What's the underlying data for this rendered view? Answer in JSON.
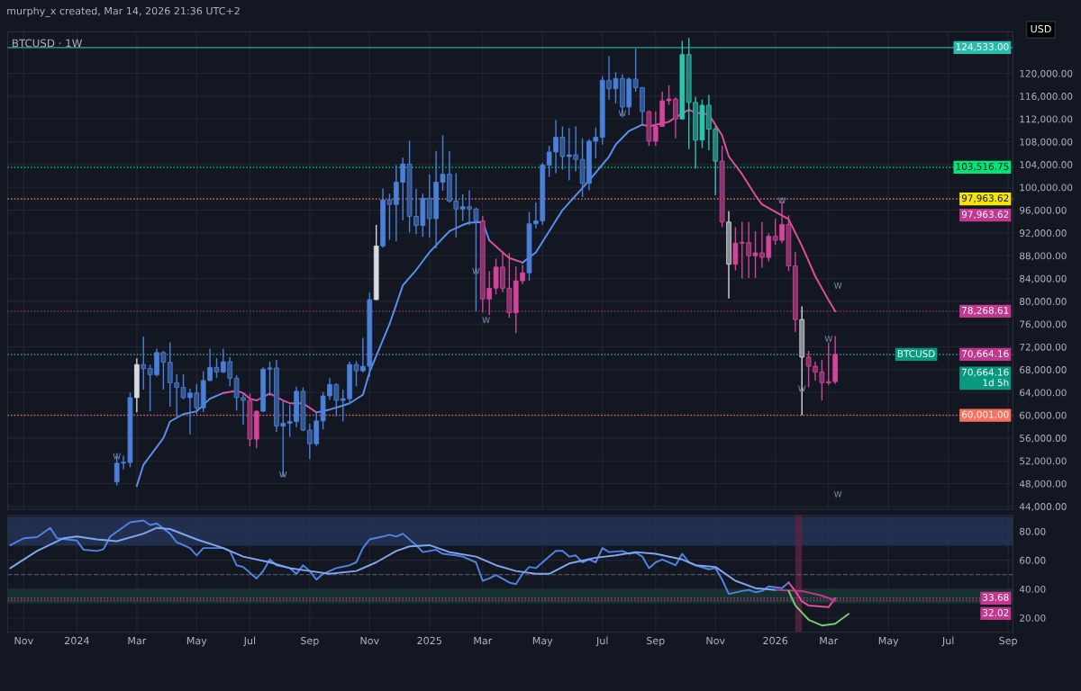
{
  "chart_data": [
    {
      "type": "candlestick",
      "title": "BTCUSD · 1W",
      "x": [
        "2024-02-12",
        "2024-02-19",
        "2024-02-26",
        "2024-03-04",
        "2024-03-11",
        "2024-03-18",
        "2024-03-25",
        "2024-04-01",
        "2024-04-08",
        "2024-04-15",
        "2024-04-22",
        "2024-04-29",
        "2024-05-06",
        "2024-05-13",
        "2024-05-20",
        "2024-05-27",
        "2024-06-03",
        "2024-06-10",
        "2024-06-17",
        "2024-06-24",
        "2024-07-01",
        "2024-07-08",
        "2024-07-15",
        "2024-07-22",
        "2024-07-29",
        "2024-08-05",
        "2024-08-12",
        "2024-08-19",
        "2024-08-26",
        "2024-09-02",
        "2024-09-09",
        "2024-09-16",
        "2024-09-23",
        "2024-09-30",
        "2024-10-07",
        "2024-10-14",
        "2024-10-21",
        "2024-10-28",
        "2024-11-04",
        "2024-11-11",
        "2024-11-18",
        "2024-11-25",
        "2024-12-02",
        "2024-12-09",
        "2024-12-16",
        "2024-12-23",
        "2024-12-30",
        "2025-01-06",
        "2025-01-13",
        "2025-01-20",
        "2025-01-27",
        "2025-02-03",
        "2025-02-10",
        "2025-02-17",
        "2025-02-24",
        "2025-03-03",
        "2025-03-10",
        "2025-03-17",
        "2025-03-24",
        "2025-03-31",
        "2025-04-07",
        "2025-04-14",
        "2025-04-21",
        "2025-04-28",
        "2025-05-05",
        "2025-05-12",
        "2025-05-19",
        "2025-05-26",
        "2025-06-02",
        "2025-06-09",
        "2025-06-16",
        "2025-06-23",
        "2025-06-30",
        "2025-07-07",
        "2025-07-14",
        "2025-07-21",
        "2025-07-28",
        "2025-08-04",
        "2025-08-11",
        "2025-08-18",
        "2025-08-25",
        "2025-09-01",
        "2025-09-08",
        "2025-09-15",
        "2025-09-22",
        "2025-09-29",
        "2025-10-06",
        "2025-10-13",
        "2025-10-20",
        "2025-10-27",
        "2025-11-03",
        "2025-11-10",
        "2025-11-17",
        "2025-11-24",
        "2025-12-01",
        "2025-12-08",
        "2025-12-15",
        "2025-12-22",
        "2025-12-29",
        "2026-01-05",
        "2026-01-12",
        "2026-01-19",
        "2026-01-26",
        "2026-02-02",
        "2026-02-09",
        "2026-02-16",
        "2026-02-23",
        "2026-03-02",
        "2026-03-09"
      ],
      "ohlc": [
        [
          48300,
          52800,
          47700,
          51600
        ],
        [
          51600,
          52900,
          50500,
          51700
        ],
        [
          51700,
          64000,
          50900,
          63100
        ],
        [
          63100,
          70000,
          60500,
          68900
        ],
        [
          68900,
          73800,
          64500,
          68200
        ],
        [
          68200,
          68900,
          60700,
          67100
        ],
        [
          67100,
          71700,
          66800,
          71000
        ],
        [
          71000,
          71300,
          64500,
          69300
        ],
        [
          69300,
          72800,
          61500,
          65700
        ],
        [
          65700,
          67200,
          59700,
          64900
        ],
        [
          64900,
          67200,
          62800,
          63100
        ],
        [
          63100,
          64700,
          56600,
          63900
        ],
        [
          63900,
          65500,
          60200,
          61300
        ],
        [
          61300,
          67700,
          60600,
          66100
        ],
        [
          66100,
          71700,
          66000,
          68400
        ],
        [
          68400,
          70000,
          66600,
          67600
        ],
        [
          67600,
          71700,
          67400,
          69400
        ],
        [
          69400,
          70200,
          65100,
          66500
        ],
        [
          66500,
          67000,
          60800,
          63100
        ],
        [
          63100,
          63800,
          58300,
          62600
        ],
        [
          62600,
          63800,
          54500,
          55800
        ],
        [
          55800,
          60900,
          54200,
          60700
        ],
        [
          60700,
          68400,
          60600,
          68100
        ],
        [
          68100,
          69400,
          63400,
          68300
        ],
        [
          68300,
          69700,
          57100,
          58100
        ],
        [
          58100,
          62700,
          49200,
          58600
        ],
        [
          58600,
          61800,
          56200,
          58900
        ],
        [
          58900,
          65000,
          57900,
          64200
        ],
        [
          64200,
          64900,
          57200,
          57400
        ],
        [
          57400,
          58500,
          52300,
          55000
        ],
        [
          55000,
          60600,
          54600,
          59000
        ],
        [
          59000,
          64100,
          57500,
          63400
        ],
        [
          63400,
          66500,
          62700,
          65400
        ],
        [
          65400,
          65600,
          59800,
          62600
        ],
        [
          62600,
          64500,
          58900,
          62900
        ],
        [
          62900,
          69400,
          62000,
          68900
        ],
        [
          68900,
          69500,
          65100,
          67800
        ],
        [
          67800,
          73600,
          67500,
          68600
        ],
        [
          68600,
          81500,
          66800,
          80300
        ],
        [
          80300,
          93400,
          80200,
          89700
        ],
        [
          89700,
          99800,
          89400,
          97800
        ],
        [
          97800,
          98900,
          90800,
          97000
        ],
        [
          97000,
          103900,
          90500,
          100900
        ],
        [
          100900,
          105200,
          94200,
          104100
        ],
        [
          104100,
          108200,
          92100,
          94900
        ],
        [
          94900,
          99700,
          91800,
          93300
        ],
        [
          93300,
          98900,
          91300,
          98100
        ],
        [
          98100,
          102300,
          91200,
          94500
        ],
        [
          94500,
          106400,
          89300,
          100900
        ],
        [
          100900,
          109100,
          99400,
          102300
        ],
        [
          102300,
          106400,
          97300,
          97600
        ],
        [
          97600,
          102500,
          91200,
          96200
        ],
        [
          96200,
          98800,
          94100,
          96600
        ],
        [
          96600,
          99500,
          93400,
          96200
        ],
        [
          96200,
          96500,
          78200,
          94100
        ],
        [
          94100,
          95000,
          78000,
          80400
        ],
        [
          80400,
          85300,
          77600,
          82300
        ],
        [
          82300,
          87500,
          81200,
          86000
        ],
        [
          86000,
          88800,
          81600,
          82300
        ],
        [
          82300,
          88500,
          77100,
          78000
        ],
        [
          78000,
          86100,
          74400,
          83600
        ],
        [
          83600,
          86400,
          83000,
          85000
        ],
        [
          85000,
          95700,
          83600,
          93600
        ],
        [
          93600,
          97400,
          92800,
          94100
        ],
        [
          94100,
          104300,
          93400,
          103900
        ],
        [
          103900,
          107300,
          101800,
          106200
        ],
        [
          106200,
          111800,
          102500,
          108800
        ],
        [
          108800,
          110700,
          103100,
          105400
        ],
        [
          105400,
          110400,
          101200,
          105700
        ],
        [
          105700,
          110700,
          102800,
          104900
        ],
        [
          104900,
          108600,
          98300,
          100700
        ],
        [
          100700,
          108500,
          99500,
          108100
        ],
        [
          108100,
          110500,
          105100,
          108800
        ],
        [
          108800,
          119500,
          107500,
          118800
        ],
        [
          118800,
          123000,
          115400,
          117300
        ],
        [
          117300,
          120200,
          114700,
          119100
        ],
        [
          119100,
          119800,
          112300,
          114100
        ],
        [
          114100,
          119300,
          112700,
          119000
        ],
        [
          119000,
          124400,
          116800,
          117500
        ],
        [
          117500,
          117600,
          110800,
          113300
        ],
        [
          113300,
          113500,
          107300,
          108100
        ],
        [
          108100,
          113300,
          107300,
          110700
        ],
        [
          110700,
          116800,
          110600,
          115200
        ],
        [
          115200,
          117900,
          114500,
          115500
        ],
        [
          115500,
          115800,
          108600,
          112000
        ],
        [
          112000,
          125700,
          111900,
          123300
        ],
        [
          123300,
          126200,
          106700,
          114900
        ],
        [
          114900,
          115900,
          103300,
          108300
        ],
        [
          108300,
          115400,
          106900,
          114400
        ],
        [
          114400,
          116200,
          106500,
          110200
        ],
        [
          110200,
          110700,
          98600,
          104600
        ],
        [
          104600,
          107300,
          93000,
          93900
        ],
        [
          93900,
          95800,
          80500,
          86500
        ],
        [
          86500,
          93000,
          85400,
          90200
        ],
        [
          90200,
          93900,
          84000,
          90300
        ],
        [
          90300,
          93900,
          84100,
          88000
        ],
        [
          88000,
          92300,
          84100,
          88500
        ],
        [
          88500,
          93900,
          85900,
          87700
        ],
        [
          87700,
          91900,
          87000,
          91400
        ],
        [
          91400,
          94500,
          89900,
          90700
        ],
        [
          90700,
          97500,
          90200,
          93500
        ],
        [
          93500,
          95100,
          85300,
          86200
        ],
        [
          86200,
          88700,
          74600,
          76800
        ],
        [
          76800,
          79100,
          60001,
          70200
        ],
        [
          70200,
          71300,
          64900,
          68600
        ],
        [
          68600,
          69400,
          66100,
          67600
        ],
        [
          67600,
          69700,
          62600,
          65700
        ],
        [
          65700,
          72800,
          65300,
          65900
        ],
        [
          65900,
          73900,
          65500,
          70664.16
        ]
      ],
      "colors": [
        "#4a80d8",
        "#4a80d8",
        "#4a80d8",
        "#d7d9e0",
        "#4a80d8",
        "#4a80d8",
        "#4a80d8",
        "#4a80d8",
        "#4a80d8",
        "#4a80d8",
        "#4a80d8",
        "#4a80d8",
        "#4a80d8",
        "#4a80d8",
        "#4a80d8",
        "#4a80d8",
        "#4a80d8",
        "#4a80d8",
        "#4a80d8",
        "#4a80d8",
        "#d2459b",
        "#d2459b",
        "#4a80d8",
        "#4a80d8",
        "#4a80d8",
        "#4a80d8",
        "#4a80d8",
        "#4a80d8",
        "#4a80d8",
        "#4a80d8",
        "#4a80d8",
        "#4a80d8",
        "#4a80d8",
        "#4a80d8",
        "#4a80d8",
        "#4a80d8",
        "#4a80d8",
        "#4a80d8",
        "#4a80d8",
        "#d7d9e0",
        "#4a80d8",
        "#4a80d8",
        "#4a80d8",
        "#4a80d8",
        "#4a80d8",
        "#4a80d8",
        "#4a80d8",
        "#4a80d8",
        "#4a80d8",
        "#4a80d8",
        "#4a80d8",
        "#4a80d8",
        "#4a80d8",
        "#4a80d8",
        "#4a80d8",
        "#d2459b",
        "#d2459b",
        "#d2459b",
        "#d2459b",
        "#d2459b",
        "#d2459b",
        "#d2459b",
        "#4a80d8",
        "#4a80d8",
        "#4a80d8",
        "#4a80d8",
        "#4a80d8",
        "#4a80d8",
        "#4a80d8",
        "#4a80d8",
        "#4a80d8",
        "#4a80d8",
        "#4a80d8",
        "#4a80d8",
        "#4a80d8",
        "#4a80d8",
        "#4a80d8",
        "#4a80d8",
        "#4a80d8",
        "#4a80d8",
        "#d2459b",
        "#d2459b",
        "#d2459b",
        "#d2459b",
        "#d2459b",
        "#2ec4b0",
        "#2ec4b0",
        "#2ec4b0",
        "#2ec4b0",
        "#2ec4b0",
        "#2ec4b0",
        "#d2459b",
        "#d7d9e0",
        "#d2459b",
        "#d2459b",
        "#d2459b",
        "#d2459b",
        "#d2459b",
        "#d2459b",
        "#d2459b",
        "#d2459b",
        "#d2459b",
        "#d2459b",
        "#d7d9e0",
        "#d2459b",
        "#d2459b",
        "#d2459b",
        "#d2459b",
        "#d2459b"
      ],
      "series": [
        {
          "type": "line",
          "color": "#5b8ff0",
          "x": [
            "2024-03-04",
            "2024-03-11",
            "2024-04-01",
            "2024-04-08",
            "2024-04-22",
            "2024-05-06",
            "2024-05-20",
            "2024-06-03"
          ],
          "values": [
            47600,
            51300,
            56000,
            58900,
            60200,
            60700,
            62900,
            63900
          ]
        },
        {
          "type": "line",
          "color": "#e0509e",
          "x": [
            "2024-06-03",
            "2024-06-17",
            "2024-06-24",
            "2024-07-01",
            "2024-07-08",
            "2024-07-22",
            "2024-08-05",
            "2024-08-12",
            "2024-08-26",
            "2024-09-09"
          ],
          "values": [
            63900,
            64300,
            63900,
            62900,
            62600,
            63800,
            62600,
            62100,
            62100,
            60500
          ]
        },
        {
          "type": "line",
          "color": "#5b8ff0",
          "x": [
            "2024-09-09",
            "2024-09-23",
            "2024-10-07",
            "2024-10-14",
            "2024-10-28",
            "2024-11-04",
            "2024-11-25",
            "2024-12-09",
            "2024-12-23",
            "2025-01-06",
            "2025-01-27",
            "2025-02-10",
            "2025-02-17",
            "2025-03-03",
            "2025-03-10"
          ],
          "values": [
            60500,
            61000,
            61700,
            62100,
            63600,
            67600,
            76000,
            82800,
            85500,
            88600,
            92300,
            93400,
            93800,
            93900,
            90700
          ]
        },
        {
          "type": "line",
          "color": "#e0509e",
          "x": [
            "2025-03-10",
            "2025-03-24",
            "2025-03-31",
            "2025-04-14"
          ],
          "values": [
            90700,
            88600,
            87600,
            86800
          ]
        },
        {
          "type": "line",
          "color": "#5b8ff0",
          "x": [
            "2025-04-14",
            "2025-04-28",
            "2025-05-12",
            "2025-05-26",
            "2025-06-09",
            "2025-06-23",
            "2025-07-14",
            "2025-07-21",
            "2025-08-04",
            "2025-08-18"
          ],
          "values": [
            86800,
            88600,
            92300,
            96000,
            98600,
            101200,
            105400,
            107500,
            109900,
            111000
          ]
        },
        {
          "type": "line",
          "color": "#e0509e",
          "x": [
            "2025-08-18",
            "2025-08-25",
            "2025-09-15",
            "2025-09-22",
            "2025-10-06"
          ],
          "values": [
            111000,
            110700,
            111500,
            112300,
            113600
          ]
        },
        {
          "type": "line",
          "color": "#e0509e",
          "x": [
            "2025-10-06",
            "2025-10-13",
            "2025-10-27",
            "2025-11-10",
            "2025-11-17",
            "2025-12-01",
            "2025-12-15",
            "2025-12-22",
            "2026-01-05",
            "2026-01-19",
            "2026-02-02",
            "2026-02-16",
            "2026-03-02",
            "2026-03-09"
          ],
          "values": [
            113600,
            113100,
            112800,
            109100,
            105400,
            102300,
            98600,
            97000,
            95700,
            94400,
            89700,
            84400,
            80200,
            78268.61
          ]
        }
      ],
      "xlim": [
        "2023-10-20",
        "2026-09-12"
      ],
      "xticks": [
        {
          "value": "2023-11-06",
          "label": null
        },
        {
          "value": "2024-01-01",
          "label": null
        },
        {
          "value": "2024-03-04",
          "label": null
        },
        {
          "value": "2024-05-06",
          "label": null
        },
        {
          "value": "2024-07-01",
          "label": null
        },
        {
          "value": "2024-09-02",
          "label": null
        },
        {
          "value": "2024-11-04",
          "label": null
        },
        {
          "value": "2025-01-06",
          "label": null
        },
        {
          "value": "2025-03-03",
          "label": null
        },
        {
          "value": "2025-05-05",
          "label": null
        },
        {
          "value": "2025-07-07",
          "label": null
        },
        {
          "value": "2025-09-01",
          "label": null
        },
        {
          "value": "2025-11-03",
          "label": null
        },
        {
          "value": "2026-01-05",
          "label": null
        },
        {
          "value": "2026-03-02",
          "label": null
        },
        {
          "value": "2026-05-04",
          "label": null
        },
        {
          "value": "2026-07-06",
          "label": null
        },
        {
          "value": "2026-09-07",
          "label": null
        }
      ],
      "ylim": [
        43500,
        127300
      ],
      "yticks": [
        {
          "value": 44000,
          "label": "44,000.00"
        },
        {
          "value": 48000,
          "label": "48,000.00"
        },
        {
          "value": 52000,
          "label": "52,000.00"
        },
        {
          "value": 56000,
          "label": "56,000.00"
        },
        {
          "value": 60000,
          "label": "60,000.00"
        },
        {
          "value": 64000,
          "label": "64,000.00"
        },
        {
          "value": 68000,
          "label": "68,000.00"
        },
        {
          "value": 72000,
          "label": "72,000.00"
        },
        {
          "value": 76000,
          "label": "76,000.00"
        },
        {
          "value": 80000,
          "label": "80,000.00"
        },
        {
          "value": 84000,
          "label": "84,000.00"
        },
        {
          "value": 88000,
          "label": "88,000.00"
        },
        {
          "value": 92000,
          "label": "92,000.00"
        },
        {
          "value": 96000,
          "label": "96,000.00"
        },
        {
          "value": 100000,
          "label": "100,000.00"
        },
        {
          "value": 104000,
          "label": "104,000.00"
        },
        {
          "value": 108000,
          "label": "108,000.00"
        },
        {
          "value": 112000,
          "label": "112,000.00"
        },
        {
          "value": 116000,
          "label": "116,000.00"
        },
        {
          "value": 120000,
          "label": "120,000.00"
        }
      ],
      "tick_labels": "y",
      "grid": true,
      "ref_lines": [
        {
          "axis": "y",
          "value": 124533,
          "label": "124,533.00",
          "color": "#2bbbad",
          "line_style": "solid"
        },
        {
          "axis": "y",
          "value": 103516.75,
          "label": "103,516.75",
          "color": "#00e676"
        },
        {
          "axis": "y",
          "value": 97963.62,
          "label": "97,963.62",
          "color": "#f5e50b"
        },
        {
          "axis": "y",
          "value": 97963.62,
          "label": "97,963.62",
          "color": "#c2378f",
          "line_style": "dotted"
        },
        {
          "axis": "y",
          "value": 78268.61,
          "label": "78,268.61",
          "color": "#c2378f"
        },
        {
          "axis": "y",
          "value": 70664.16,
          "label": "70,664.16",
          "color": "#c2378f"
        },
        {
          "axis": "y",
          "value": 70664.16,
          "label": "70,664.16\n1d 5h",
          "color": "#089981",
          "line_style": "dotted"
        },
        {
          "axis": "y",
          "value": 60001,
          "label": "60,001.00",
          "color": "#f7725d",
          "line_style": "dotted"
        }
      ],
      "annotations": [
        "murphy_x created, Mar 14, 2026 21:36 UTC+2",
        "USD",
        "BTCUSD",
        "W",
        "W",
        "W",
        {
          "text": "W",
          "x": "2024-02-12",
          "y": 52700
        },
        {
          "text": "W",
          "x": "2024-08-05",
          "y": 49500
        },
        {
          "text": "W",
          "x": "2025-02-24",
          "y": 85200
        },
        {
          "text": "W",
          "x": "2025-07-28",
          "y": 112900
        },
        {
          "text": "W",
          "x": "2026-01-12",
          "y": 97600
        },
        {
          "text": "W",
          "x": "2026-03-02",
          "y": 73300
        },
        {
          "text": "W",
          "x": "2026-02-02",
          "y": 64600
        }
      ]
    },
    {
      "type": "line",
      "series": [
        {
          "color": "#4d84e6",
          "x": [
            "2023-10-23",
            "2023-11-06",
            "2023-11-20",
            "2023-12-04",
            "2023-12-11",
            "2024-01-01",
            "2024-01-08",
            "2024-01-22",
            "2024-01-29",
            "2024-02-05",
            "2024-02-26",
            "2024-03-11",
            "2024-03-18",
            "2024-03-25",
            "2024-04-08",
            "2024-04-15",
            "2024-04-29",
            "2024-05-06",
            "2024-05-13",
            "2024-06-03",
            "2024-06-10",
            "2024-06-17",
            "2024-06-24",
            "2024-07-08",
            "2024-07-15",
            "2024-07-22",
            "2024-07-29",
            "2024-08-12",
            "2024-08-19",
            "2024-08-26",
            "2024-09-02",
            "2024-09-09",
            "2024-09-16",
            "2024-09-23",
            "2024-09-30",
            "2024-10-14",
            "2024-10-21",
            "2024-10-28",
            "2024-11-04",
            "2024-11-18",
            "2024-11-25",
            "2024-12-02",
            "2024-12-09",
            "2024-12-23",
            "2024-12-30",
            "2025-01-06",
            "2025-01-13",
            "2025-01-20",
            "2025-02-03",
            "2025-02-10",
            "2025-02-24",
            "2025-03-03",
            "2025-03-10",
            "2025-03-17",
            "2025-03-31",
            "2025-04-07",
            "2025-04-14",
            "2025-04-21",
            "2025-04-28",
            "2025-05-12",
            "2025-05-19",
            "2025-05-26",
            "2025-06-02",
            "2025-06-09",
            "2025-06-16",
            "2025-06-23",
            "2025-06-30",
            "2025-07-07",
            "2025-07-14",
            "2025-07-28",
            "2025-08-04",
            "2025-08-11",
            "2025-08-18",
            "2025-08-25",
            "2025-09-01",
            "2025-09-08",
            "2025-09-22",
            "2025-09-29",
            "2025-10-06",
            "2025-10-13",
            "2025-10-27",
            "2025-11-03",
            "2025-11-10",
            "2025-11-17",
            "2025-12-01",
            "2025-12-08",
            "2025-12-15",
            "2025-12-22",
            "2025-12-29",
            "2026-01-12",
            "2026-01-19"
          ],
          "values": [
            70.4,
            75.2,
            76.0,
            82.4,
            75.2,
            73.6,
            67.2,
            66.4,
            67.6,
            76.4,
            86.3,
            87.5,
            84.4,
            85.5,
            78.4,
            72.4,
            68.4,
            63.3,
            68.4,
            68.4,
            66.4,
            56.5,
            55.3,
            47.3,
            52.5,
            60.5,
            56.5,
            54.5,
            50.5,
            56.5,
            52.5,
            46.5,
            50.5,
            52.5,
            54.5,
            56.5,
            58.5,
            68.4,
            74.4,
            76.4,
            77.6,
            76.4,
            78.4,
            70.4,
            65.6,
            66.4,
            67.2,
            64.4,
            63.3,
            62.5,
            58.5,
            45.7,
            47.3,
            49.7,
            44.5,
            43.4,
            50.5,
            55.3,
            54.5,
            62.5,
            66.4,
            66.4,
            62.5,
            63.3,
            58.5,
            60.5,
            58.5,
            68.4,
            65.6,
            66.4,
            64.4,
            65.2,
            62.5,
            54.5,
            58.5,
            60.5,
            56.5,
            64.4,
            58.5,
            56.5,
            53.7,
            54.5,
            46.5,
            36.6,
            38.6,
            39.4,
            37.8,
            38.6,
            41.8,
            40.6,
            44.5
          ]
        },
        {
          "color": "#e0509e",
          "x": [
            "2026-01-19",
            "2026-01-26",
            "2026-02-02",
            "2026-02-09",
            "2026-02-16",
            "2026-02-23",
            "2026-03-02",
            "2026-03-09"
          ],
          "values": [
            44.5,
            38.6,
            31.4,
            28.6,
            28.2,
            27.8,
            27.4,
            33.68
          ]
        },
        {
          "color": "#7fa6ee",
          "x": [
            "2023-10-23",
            "2023-11-20",
            "2023-12-18",
            "2024-01-01",
            "2024-01-22",
            "2024-02-12",
            "2024-03-11",
            "2024-03-25",
            "2024-04-08",
            "2024-05-06",
            "2024-06-03",
            "2024-06-24",
            "2024-07-22",
            "2024-08-12",
            "2024-09-02",
            "2024-09-23",
            "2024-10-21",
            "2024-11-11",
            "2024-12-02",
            "2024-12-16",
            "2025-01-06",
            "2025-01-27",
            "2025-02-24",
            "2025-03-17",
            "2025-04-07",
            "2025-04-28",
            "2025-05-12",
            "2025-06-02",
            "2025-06-30",
            "2025-07-21",
            "2025-08-11",
            "2025-09-01",
            "2025-09-29",
            "2025-10-13",
            "2025-11-03",
            "2025-11-24",
            "2025-12-15",
            "2026-01-05"
          ],
          "values": [
            54.5,
            66.4,
            75.2,
            76.4,
            74.4,
            73.2,
            78.4,
            82.4,
            81.6,
            74.4,
            68.4,
            62.5,
            58.5,
            54.5,
            52.5,
            50.5,
            52.5,
            58.5,
            66.4,
            69.6,
            70.4,
            65.6,
            62.5,
            56.5,
            52.5,
            50.5,
            50.5,
            57.7,
            61.7,
            63.3,
            65.6,
            64.4,
            60.5,
            56.5,
            55.3,
            45.7,
            40.6,
            39.4
          ]
        },
        {
          "color": "#c2378f",
          "x": [
            "2026-01-05",
            "2026-02-02",
            "2026-02-23",
            "2026-03-09"
          ],
          "values": [
            39.4,
            38.6,
            35.4,
            32.02
          ]
        },
        {
          "color": "#7cc96f",
          "x": [
            "2026-01-19",
            "2026-01-26",
            "2026-02-09",
            "2026-02-23",
            "2026-03-09",
            "2026-03-23"
          ],
          "values": [
            38.6,
            28.6,
            18.7,
            14.7,
            15.9,
            22.7
          ]
        }
      ],
      "xlim": [
        "2023-10-20",
        "2026-09-12"
      ],
      "xticks": [
        {
          "value": "2023-11-06",
          "label": "Nov"
        },
        {
          "value": "2024-01-01",
          "label": "2024"
        },
        {
          "value": "2024-03-04",
          "label": "Mar"
        },
        {
          "value": "2024-05-06",
          "label": "May"
        },
        {
          "value": "2024-07-01",
          "label": "Jul"
        },
        {
          "value": "2024-09-02",
          "label": "Sep"
        },
        {
          "value": "2024-11-04",
          "label": "Nov"
        },
        {
          "value": "2025-01-06",
          "label": "2025"
        },
        {
          "value": "2025-03-03",
          "label": "Mar"
        },
        {
          "value": "2025-05-05",
          "label": "May"
        },
        {
          "value": "2025-07-07",
          "label": "Jul"
        },
        {
          "value": "2025-09-01",
          "label": "Sep"
        },
        {
          "value": "2025-11-03",
          "label": "Nov"
        },
        {
          "value": "2026-01-05",
          "label": "2026"
        },
        {
          "value": "2026-03-02",
          "label": "Mar"
        },
        {
          "value": "2026-05-04",
          "label": "May"
        },
        {
          "value": "2026-07-06",
          "label": "Jul"
        },
        {
          "value": "2026-09-07",
          "label": "Sep"
        }
      ],
      "ylim": [
        10,
        91
      ],
      "yticks": [
        {
          "value": 20,
          "label": "20.00"
        },
        {
          "value": 40,
          "label": "40.00"
        },
        {
          "value": 60,
          "label": "60.00"
        },
        {
          "value": 80,
          "label": "80.00"
        }
      ],
      "grid": true,
      "bands": [
        {
          "axis": "y",
          "from": 70,
          "to": 90,
          "color": "#26355a"
        },
        {
          "axis": "y",
          "from": 30,
          "to": 40,
          "color": "#173a33"
        },
        {
          "axis": "x",
          "from": "2026-01-26",
          "to": "2026-02-02",
          "color": "#5c2342"
        }
      ],
      "ref_lines": [
        {
          "axis": "y",
          "value": 50,
          "color": "#555a66",
          "line_style": "dashed"
        },
        {
          "axis": "y",
          "value": 33.68,
          "label": "33.68",
          "color": "#c2378f"
        },
        {
          "axis": "y",
          "value": 32.02,
          "label": "32.02",
          "color": "#c2378f"
        }
      ]
    }
  ]
}
